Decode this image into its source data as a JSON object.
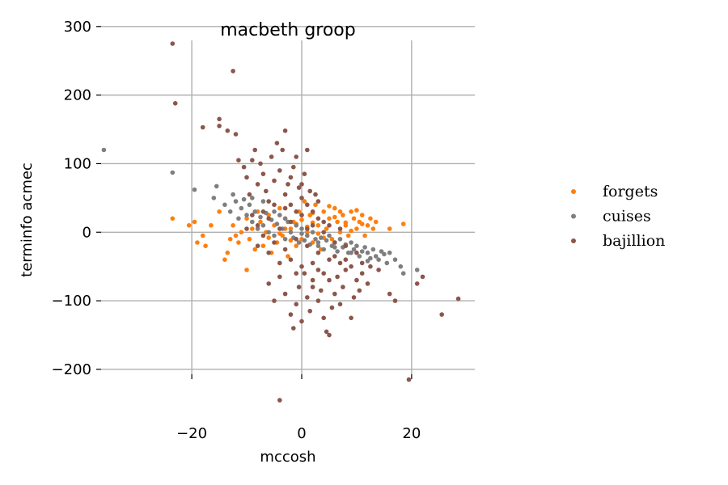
{
  "chart_data": {
    "type": "scatter",
    "title": "macbeth groop",
    "xlabel": "mccosh",
    "ylabel": "terminfo acmec",
    "xlim": [
      -36.5,
      31.5
    ],
    "ylim": [
      -272,
      308
    ],
    "xticks": [
      -20,
      0,
      20
    ],
    "yticks": [
      -200,
      -100,
      0,
      100,
      200,
      300
    ],
    "xtick_labels": [
      "−20",
      "0",
      "20"
    ],
    "ytick_labels": [
      "−200",
      "−100",
      "0",
      "100",
      "200",
      "300"
    ],
    "grid": true,
    "legend_position": "right",
    "series": [
      {
        "name": "forgets",
        "color": "#ff7f0e",
        "points": [
          [
            -23.5,
            20
          ],
          [
            -20.5,
            10
          ],
          [
            -19.5,
            15
          ],
          [
            -19,
            -15
          ],
          [
            -18,
            -5
          ],
          [
            -17.5,
            -20
          ],
          [
            -16.5,
            10
          ],
          [
            -15,
            30
          ],
          [
            -14,
            -40
          ],
          [
            -13.5,
            -30
          ],
          [
            -13,
            -10
          ],
          [
            -12.5,
            10
          ],
          [
            -12,
            -5
          ],
          [
            -11.5,
            -15
          ],
          [
            -11,
            0
          ],
          [
            -10,
            -55
          ],
          [
            -10,
            20
          ],
          [
            -9.5,
            -10
          ],
          [
            -9,
            5
          ],
          [
            -8.5,
            -25
          ],
          [
            -8,
            30
          ],
          [
            -7.5,
            15
          ],
          [
            -7,
            -20
          ],
          [
            -6.5,
            0
          ],
          [
            -6,
            25
          ],
          [
            -5.5,
            -30
          ],
          [
            -5,
            10
          ],
          [
            -4.5,
            -15
          ],
          [
            -4,
            35
          ],
          [
            -3.5,
            -5
          ],
          [
            -3,
            20
          ],
          [
            -2.5,
            -35
          ],
          [
            -2,
            5
          ],
          [
            -1.5,
            15
          ],
          [
            -1,
            -20
          ],
          [
            -0.5,
            30
          ],
          [
            0,
            -10
          ],
          [
            0.5,
            45
          ],
          [
            1,
            0
          ],
          [
            1.5,
            25
          ],
          [
            2,
            -15
          ],
          [
            2.5,
            40
          ],
          [
            3,
            10
          ],
          [
            3.5,
            -25
          ],
          [
            4,
            30
          ],
          [
            4.5,
            5
          ],
          [
            5,
            20
          ],
          [
            5.5,
            -10
          ],
          [
            6,
            35
          ],
          [
            6.5,
            15
          ],
          [
            7,
            0
          ],
          [
            7.5,
            25
          ],
          [
            8,
            10
          ],
          [
            8.5,
            -5
          ],
          [
            9,
            30
          ],
          [
            9.5,
            20
          ],
          [
            10,
            5
          ],
          [
            10.5,
            15
          ],
          [
            11,
            25
          ],
          [
            11.5,
            -5
          ],
          [
            12,
            10
          ],
          [
            12.5,
            20
          ],
          [
            13,
            5
          ],
          [
            13.5,
            15
          ],
          [
            16,
            5
          ],
          [
            18.5,
            12
          ],
          [
            -3,
            5
          ],
          [
            2,
            28
          ],
          [
            -1,
            12
          ],
          [
            4,
            -8
          ],
          [
            6,
            22
          ],
          [
            8,
            14
          ],
          [
            -6,
            -8
          ],
          [
            0,
            18
          ],
          [
            3,
            -2
          ],
          [
            5,
            38
          ],
          [
            -2,
            -12
          ],
          [
            7,
            30
          ],
          [
            9,
            2
          ],
          [
            1,
            8
          ],
          [
            -4,
            -2
          ],
          [
            10,
            32
          ],
          [
            11,
            12
          ],
          [
            2,
            14
          ]
        ]
      },
      {
        "name": "cuises",
        "color": "#7f7f7f",
        "points": [
          [
            -36,
            120
          ],
          [
            -23.5,
            87
          ],
          [
            -19.5,
            62
          ],
          [
            -16,
            50
          ],
          [
            -15.5,
            67
          ],
          [
            -14,
            40
          ],
          [
            -13,
            30
          ],
          [
            -12.5,
            55
          ],
          [
            -12,
            45
          ],
          [
            -11.5,
            20
          ],
          [
            -11,
            35
          ],
          [
            -10.5,
            48
          ],
          [
            -10,
            25
          ],
          [
            -9.5,
            40
          ],
          [
            -9,
            15
          ],
          [
            -8.5,
            30
          ],
          [
            -8,
            5
          ],
          [
            -7.5,
            22
          ],
          [
            -7,
            10
          ],
          [
            -6.5,
            28
          ],
          [
            -6,
            0
          ],
          [
            -5.5,
            18
          ],
          [
            -5,
            -5
          ],
          [
            -4.5,
            12
          ],
          [
            -4,
            25
          ],
          [
            -3.5,
            5
          ],
          [
            -3,
            -10
          ],
          [
            -2.5,
            15
          ],
          [
            -2,
            0
          ],
          [
            -1.5,
            -8
          ],
          [
            -1,
            10
          ],
          [
            -0.5,
            -15
          ],
          [
            0,
            5
          ],
          [
            0.5,
            -12
          ],
          [
            1,
            -5
          ],
          [
            1.5,
            -18
          ],
          [
            2,
            0
          ],
          [
            2.5,
            -10
          ],
          [
            3,
            -20
          ],
          [
            3.5,
            -8
          ],
          [
            4,
            -25
          ],
          [
            4.5,
            -12
          ],
          [
            5,
            -5
          ],
          [
            5.5,
            -20
          ],
          [
            6,
            -15
          ],
          [
            6.5,
            -28
          ],
          [
            7,
            -10
          ],
          [
            7.5,
            -22
          ],
          [
            8,
            -18
          ],
          [
            8.5,
            -30
          ],
          [
            9,
            -15
          ],
          [
            9.5,
            -25
          ],
          [
            10,
            -20
          ],
          [
            10.5,
            -35
          ],
          [
            11,
            -28
          ],
          [
            11.5,
            -22
          ],
          [
            12,
            -30
          ],
          [
            12.5,
            -38
          ],
          [
            13,
            -25
          ],
          [
            13.5,
            -35
          ],
          [
            14,
            -40
          ],
          [
            15,
            -32
          ],
          [
            15.5,
            -45
          ],
          [
            16,
            -30
          ],
          [
            17,
            -40
          ],
          [
            18,
            -50
          ],
          [
            18.5,
            -60
          ],
          [
            21,
            -55
          ],
          [
            -9,
            50
          ],
          [
            -7,
            45
          ],
          [
            -5,
            30
          ],
          [
            -3,
            20
          ],
          [
            0,
            -2
          ],
          [
            3,
            -15
          ],
          [
            6,
            -22
          ],
          [
            9,
            -30
          ],
          [
            12,
            -42
          ],
          [
            14.5,
            -28
          ]
        ]
      },
      {
        "name": "bajillion",
        "color": "#8c564b",
        "points": [
          [
            -23.5,
            275
          ],
          [
            -23,
            188
          ],
          [
            -18,
            153
          ],
          [
            -15,
            165
          ],
          [
            -15,
            155
          ],
          [
            -13.5,
            148
          ],
          [
            -12.5,
            235
          ],
          [
            -12,
            143
          ],
          [
            -11.5,
            105
          ],
          [
            -10.5,
            95
          ],
          [
            -10,
            80
          ],
          [
            -9.5,
            55
          ],
          [
            -9,
            105
          ],
          [
            -8.5,
            120
          ],
          [
            -8,
            70
          ],
          [
            -7.5,
            100
          ],
          [
            -7,
            85
          ],
          [
            -6.5,
            60
          ],
          [
            -6,
            45
          ],
          [
            -5.5,
            110
          ],
          [
            -5,
            75
          ],
          [
            -4.5,
            130
          ],
          [
            -4,
            90
          ],
          [
            -3.5,
            120
          ],
          [
            -3,
            148
          ],
          [
            -2.5,
            70
          ],
          [
            -2,
            40
          ],
          [
            -1.5,
            95
          ],
          [
            -1,
            110
          ],
          [
            -0.5,
            65
          ],
          [
            0,
            50
          ],
          [
            0.5,
            85
          ],
          [
            1,
            120
          ],
          [
            1.5,
            60
          ],
          [
            2,
            30
          ],
          [
            2.5,
            55
          ],
          [
            3,
            45
          ],
          [
            -4,
            -245
          ],
          [
            -6,
            -75
          ],
          [
            -5,
            -100
          ],
          [
            -4,
            -65
          ],
          [
            -3,
            -90
          ],
          [
            -2,
            -120
          ],
          [
            -1.5,
            -140
          ],
          [
            -1,
            -105
          ],
          [
            -0.5,
            -80
          ],
          [
            0,
            -130
          ],
          [
            0.5,
            -60
          ],
          [
            1,
            -95
          ],
          [
            1.5,
            -115
          ],
          [
            2,
            -70
          ],
          [
            3,
            -100
          ],
          [
            3.5,
            -85
          ],
          [
            4,
            -125
          ],
          [
            4.5,
            -145
          ],
          [
            5,
            -150
          ],
          [
            5.5,
            -110
          ],
          [
            6,
            -90
          ],
          [
            6.5,
            -65
          ],
          [
            7,
            -105
          ],
          [
            7.5,
            -80
          ],
          [
            8,
            -55
          ],
          [
            9,
            -125
          ],
          [
            9.5,
            -95
          ],
          [
            10,
            -70
          ],
          [
            10.5,
            -85
          ],
          [
            11,
            -60
          ],
          [
            12,
            -75
          ],
          [
            12.5,
            -50
          ],
          [
            14,
            -55
          ],
          [
            16,
            -90
          ],
          [
            17,
            -100
          ],
          [
            19.5,
            -215
          ],
          [
            21,
            -75
          ],
          [
            22,
            -65
          ],
          [
            25.5,
            -120
          ],
          [
            28.5,
            -97
          ],
          [
            -8,
            10
          ],
          [
            -7,
            -5
          ],
          [
            -6,
            20
          ],
          [
            -5,
            -15
          ],
          [
            -4,
            5
          ],
          [
            -3,
            -25
          ],
          [
            -2,
            15
          ],
          [
            -1,
            -10
          ],
          [
            0,
            25
          ],
          [
            1,
            -20
          ],
          [
            2,
            10
          ],
          [
            3,
            -30
          ],
          [
            4,
            0
          ],
          [
            5,
            -40
          ],
          [
            6,
            -15
          ],
          [
            7,
            -45
          ],
          [
            8,
            -20
          ],
          [
            9,
            -50
          ],
          [
            -5,
            40
          ],
          [
            -3,
            55
          ],
          [
            -1,
            30
          ],
          [
            1,
            40
          ],
          [
            3,
            20
          ],
          [
            5,
            10
          ],
          [
            -7,
            30
          ],
          [
            -6,
            -30
          ],
          [
            -2,
            -40
          ],
          [
            0,
            -50
          ],
          [
            2,
            -45
          ],
          [
            4,
            -60
          ],
          [
            6,
            -35
          ],
          [
            8,
            -40
          ],
          [
            10,
            -30
          ],
          [
            -9,
            25
          ],
          [
            -4,
            -45
          ],
          [
            0,
            70
          ],
          [
            -2,
            80
          ],
          [
            2,
            -80
          ],
          [
            4,
            15
          ],
          [
            -1,
            -60
          ],
          [
            1,
            5
          ],
          [
            3,
            -55
          ],
          [
            -3,
            35
          ],
          [
            5,
            -70
          ],
          [
            7,
            5
          ],
          [
            -8,
            -20
          ],
          [
            11,
            -45
          ],
          [
            -10,
            5
          ]
        ]
      }
    ]
  }
}
